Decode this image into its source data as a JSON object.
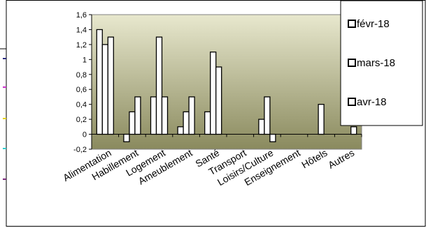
{
  "chart_data": {
    "type": "bar",
    "title": "",
    "xlabel": "",
    "ylabel": "",
    "categories": [
      "Alimentation",
      "Habillement",
      "Logement",
      "Ameublement",
      "Santé",
      "Transport",
      "Loisirs/Culture",
      "Enseignement",
      "Hôtels",
      "Autres"
    ],
    "series": [
      {
        "name": "févr-18",
        "values": [
          1.4,
          -0.1,
          0.5,
          0.1,
          0.3,
          0,
          0.2,
          0,
          0,
          0
        ]
      },
      {
        "name": "mars-18",
        "values": [
          1.2,
          0.3,
          1.3,
          0.3,
          1.1,
          0,
          0.5,
          0,
          0.4,
          0
        ]
      },
      {
        "name": "avr-18",
        "values": [
          1.3,
          0.5,
          0.5,
          0.5,
          0.9,
          0,
          -0.1,
          0,
          0,
          0.1
        ]
      }
    ],
    "ylim": [
      -0.2,
      1.6
    ],
    "yticks": [
      "1,6",
      "1,4",
      "1,2",
      "1",
      "0,8",
      "0,6",
      "0,4",
      "0,2",
      "0",
      "-0,2"
    ],
    "grid": false,
    "legend_position": "top-right",
    "colors": {
      "plot_top": "#e8e8ce",
      "plot_bottom": "#8a8a5e",
      "bar_fill": "#ffffff",
      "bar_stroke": "#000000",
      "page_background": "#ffffff"
    }
  }
}
